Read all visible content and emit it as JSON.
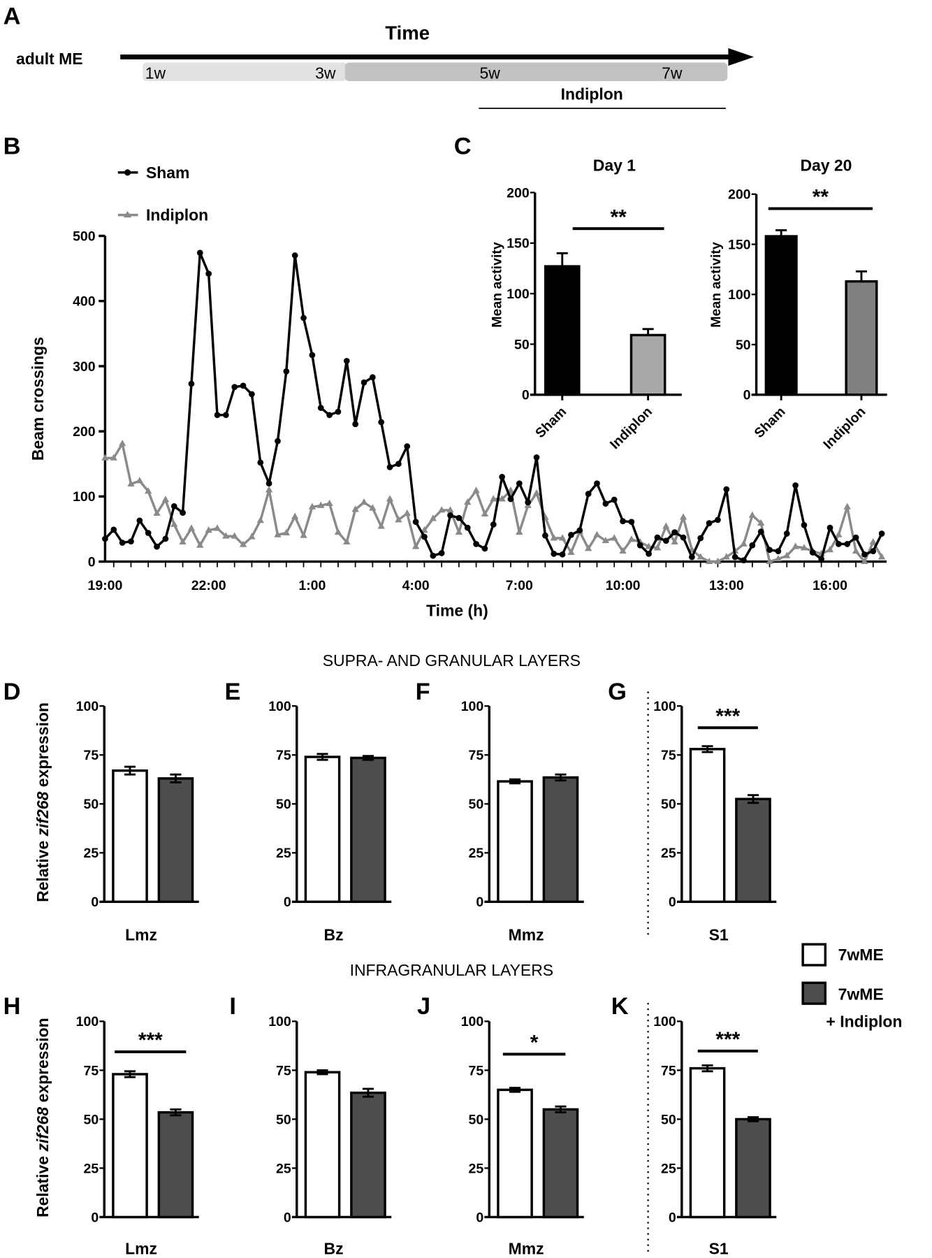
{
  "panel_labels": {
    "A": "A",
    "B": "B",
    "C": "C",
    "D": "D",
    "E": "E",
    "F": "F",
    "G": "G",
    "H": "H",
    "I": "I",
    "J": "J",
    "K": "K"
  },
  "panelA": {
    "subject": "adult ME",
    "axis_title": "Time",
    "weeks": [
      "1w",
      "3w",
      "5w",
      "7w"
    ],
    "treatment_label": "Indiplon"
  },
  "section_titles": {
    "top": "SUPRA- AND GRANULAR LAYERS",
    "bottom": "INFRAGRANULAR LAYERS"
  },
  "legend": {
    "items": [
      {
        "label": "7wME",
        "color": "#ffffff"
      },
      {
        "label_line1": "7wME",
        "label_line2": "+ Indiplon",
        "color": "#4d4d4d"
      }
    ]
  },
  "zif_ylabel": {
    "prefix": "Relative ",
    "gene": "zif268",
    "suffix": " expression"
  },
  "chart_data": [
    {
      "panel": "B",
      "type": "line",
      "xlabel": "Time (h)",
      "ylabel": "Beam crossings",
      "ylim": [
        0,
        500
      ],
      "yticks": [
        "0",
        "100",
        "200",
        "300",
        "400",
        "500"
      ],
      "xticklabels": [
        "19:00",
        "22:00",
        "1:00",
        "4:00",
        "7:00",
        "10:00",
        "13:00",
        "16:00"
      ],
      "legend_position": "top-left",
      "x": [
        "19:00",
        "19:15",
        "19:30",
        "19:45",
        "20:00",
        "20:15",
        "20:30",
        "20:45",
        "21:00",
        "21:15",
        "21:30",
        "21:45",
        "22:00",
        "22:15",
        "22:30",
        "22:45",
        "23:00",
        "23:15",
        "23:30",
        "23:45",
        "0:00",
        "0:15",
        "0:30",
        "0:45",
        "1:00",
        "1:15",
        "1:30",
        "1:45",
        "2:00",
        "2:15",
        "2:30",
        "2:45",
        "3:00",
        "3:15",
        "3:30",
        "3:45",
        "4:00",
        "4:15",
        "4:30",
        "4:45",
        "5:00",
        "5:15",
        "5:30",
        "5:45",
        "6:00",
        "6:15",
        "6:30",
        "6:45",
        "7:00",
        "7:15",
        "7:30",
        "7:45",
        "8:00",
        "8:15",
        "8:30",
        "8:45",
        "9:00",
        "9:15",
        "9:30",
        "9:45",
        "10:00",
        "10:15",
        "10:30",
        "10:45",
        "11:00",
        "11:15",
        "11:30",
        "11:45",
        "12:00",
        "12:15",
        "12:30",
        "12:45",
        "13:00",
        "13:15",
        "13:30",
        "13:45",
        "14:00",
        "14:15",
        "14:30",
        "14:45",
        "15:00",
        "15:15",
        "15:30",
        "15:45",
        "16:00",
        "16:15",
        "16:30",
        "16:45",
        "17:00",
        "17:15",
        "17:30"
      ],
      "series": [
        {
          "name": "Sham",
          "color": "#000000",
          "marker": "circle",
          "values": [
            35,
            49,
            29,
            31,
            63,
            44,
            23,
            35,
            85,
            75,
            273,
            474,
            442,
            225,
            225,
            268,
            270,
            257,
            152,
            120,
            185,
            292,
            470,
            374,
            317,
            236,
            225,
            230,
            308,
            211,
            275,
            283,
            214,
            145,
            150,
            177,
            61,
            38,
            9,
            13,
            71,
            67,
            52,
            27,
            20,
            57,
            130,
            96,
            120,
            91,
            160,
            40,
            12,
            11,
            41,
            48,
            104,
            120,
            89,
            95,
            62,
            61,
            25,
            12,
            37,
            32,
            45,
            37,
            7,
            36,
            59,
            64,
            111,
            7,
            2,
            25,
            46,
            18,
            16,
            43,
            117,
            56,
            14,
            4,
            52,
            27,
            27,
            37,
            11,
            16,
            43
          ]
        },
        {
          "name": "Indiplon",
          "color": "#8a8a8a",
          "marker": "triangle",
          "values": [
            159,
            159,
            181,
            119,
            124,
            108,
            74,
            95,
            57,
            30,
            51,
            25,
            48,
            51,
            39,
            39,
            26,
            38,
            63,
            110,
            41,
            44,
            69,
            40,
            84,
            86,
            89,
            45,
            30,
            80,
            91,
            82,
            54,
            96,
            64,
            74,
            23,
            48,
            66,
            79,
            79,
            45,
            91,
            109,
            73,
            96,
            96,
            109,
            45,
            86,
            105,
            68,
            36,
            36,
            14,
            46,
            20,
            41,
            32,
            36,
            16,
            34,
            30,
            23,
            21,
            54,
            30,
            68,
            18,
            7,
            0,
            0,
            7,
            16,
            27,
            71,
            59,
            0,
            4,
            9,
            23,
            21,
            16,
            12,
            18,
            41,
            84,
            16,
            0,
            30,
            7
          ]
        }
      ]
    },
    {
      "panel": "C",
      "type": "bar",
      "title": "Day 1",
      "ylabel": "Mean activity",
      "ylim": [
        0,
        200
      ],
      "yticks": [
        "0",
        "50",
        "100",
        "150",
        "200"
      ],
      "categories": [
        "Sham",
        "Indiplon"
      ],
      "values": [
        127,
        59
      ],
      "errors": [
        13,
        6
      ],
      "colors": [
        "#000000",
        "#a8a8a8"
      ],
      "significance": "**"
    },
    {
      "panel": "C",
      "type": "bar",
      "title": "Day 20",
      "ylabel": "Mean activity",
      "ylim": [
        0,
        200
      ],
      "yticks": [
        "0",
        "50",
        "100",
        "150",
        "200"
      ],
      "categories": [
        "Sham",
        "Indiplon"
      ],
      "values": [
        158,
        113
      ],
      "errors": [
        6,
        10
      ],
      "colors": [
        "#000000",
        "#808080"
      ],
      "significance": "**"
    },
    {
      "panel": "D",
      "type": "bar",
      "category": "Lmz",
      "ylim": [
        0,
        100
      ],
      "yticks": [
        "0",
        "25",
        "50",
        "75",
        "100"
      ],
      "series": [
        "7wME",
        "7wME + Indiplon"
      ],
      "values": [
        67,
        63
      ],
      "errors": [
        2,
        2
      ],
      "colors": [
        "#ffffff",
        "#4d4d4d"
      ],
      "significance": ""
    },
    {
      "panel": "E",
      "type": "bar",
      "category": "Bz",
      "ylim": [
        0,
        100
      ],
      "yticks": [
        "0",
        "25",
        "50",
        "75",
        "100"
      ],
      "series": [
        "7wME",
        "7wME + Indiplon"
      ],
      "values": [
        74,
        73.5
      ],
      "errors": [
        1.5,
        1
      ],
      "colors": [
        "#ffffff",
        "#4d4d4d"
      ],
      "significance": ""
    },
    {
      "panel": "F",
      "type": "bar",
      "category": "Mmz",
      "ylim": [
        0,
        100
      ],
      "yticks": [
        "0",
        "25",
        "50",
        "75",
        "100"
      ],
      "series": [
        "7wME",
        "7wME + Indiplon"
      ],
      "values": [
        61.5,
        63.5
      ],
      "errors": [
        1,
        1.5
      ],
      "colors": [
        "#ffffff",
        "#4d4d4d"
      ],
      "significance": ""
    },
    {
      "panel": "G",
      "type": "bar",
      "category": "S1",
      "ylim": [
        0,
        100
      ],
      "yticks": [
        "0",
        "25",
        "50",
        "75",
        "100"
      ],
      "series": [
        "7wME",
        "7wME + Indiplon"
      ],
      "values": [
        78,
        52.5
      ],
      "errors": [
        1.5,
        2
      ],
      "colors": [
        "#ffffff",
        "#4d4d4d"
      ],
      "significance": "***"
    },
    {
      "panel": "H",
      "type": "bar",
      "category": "Lmz",
      "ylim": [
        0,
        100
      ],
      "yticks": [
        "0",
        "25",
        "50",
        "75",
        "100"
      ],
      "series": [
        "7wME",
        "7wME + Indiplon"
      ],
      "values": [
        73,
        53.5
      ],
      "errors": [
        1.5,
        1.5
      ],
      "colors": [
        "#ffffff",
        "#4d4d4d"
      ],
      "significance": "***"
    },
    {
      "panel": "I",
      "type": "bar",
      "category": "Bz",
      "ylim": [
        0,
        100
      ],
      "yticks": [
        "0",
        "25",
        "50",
        "75",
        "100"
      ],
      "series": [
        "7wME",
        "7wME + Indiplon"
      ],
      "values": [
        74,
        63.5
      ],
      "errors": [
        1,
        2
      ],
      "colors": [
        "#ffffff",
        "#4d4d4d"
      ],
      "significance": ""
    },
    {
      "panel": "J",
      "type": "bar",
      "category": "Mmz",
      "ylim": [
        0,
        100
      ],
      "yticks": [
        "0",
        "25",
        "50",
        "75",
        "100"
      ],
      "series": [
        "7wME",
        "7wME + Indiplon"
      ],
      "values": [
        65,
        55
      ],
      "errors": [
        1,
        1.5
      ],
      "colors": [
        "#ffffff",
        "#4d4d4d"
      ],
      "significance": "*"
    },
    {
      "panel": "K",
      "type": "bar",
      "category": "S1",
      "ylim": [
        0,
        100
      ],
      "yticks": [
        "0",
        "25",
        "50",
        "75",
        "100"
      ],
      "series": [
        "7wME",
        "7wME + Indiplon"
      ],
      "values": [
        76,
        50
      ],
      "errors": [
        1.5,
        1
      ],
      "colors": [
        "#ffffff",
        "#4d4d4d"
      ],
      "significance": "***"
    }
  ]
}
